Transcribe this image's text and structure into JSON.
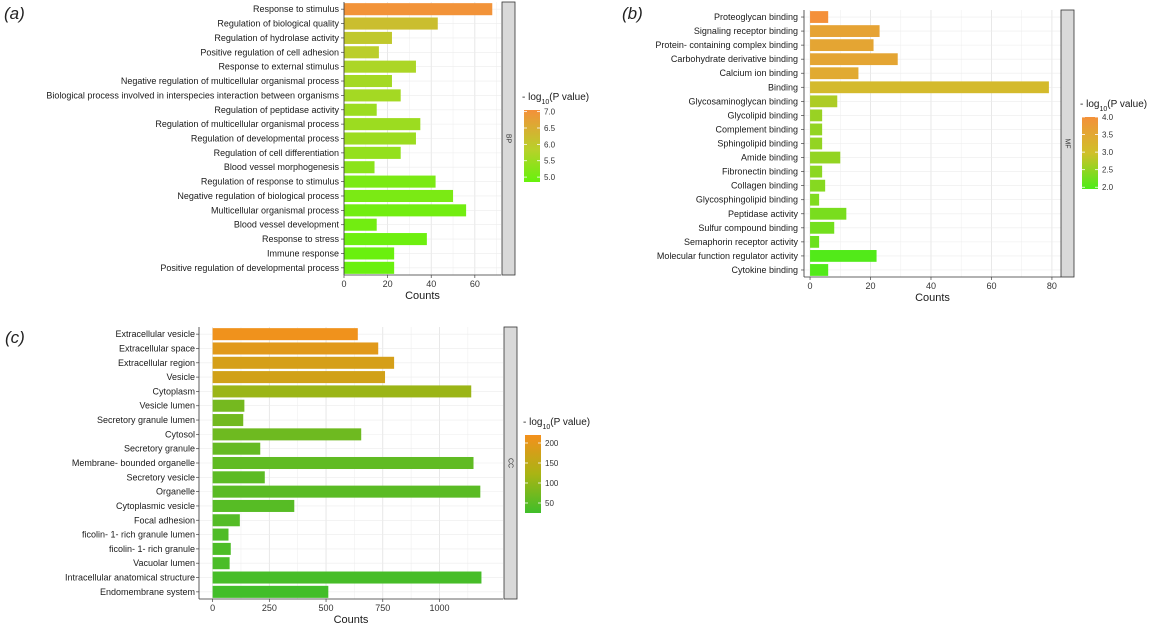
{
  "chart_data": [
    {
      "panel": "(a)",
      "type": "bar",
      "orientation": "horizontal",
      "facet_label": "BP",
      "xlabel": "Counts",
      "xlim": [
        0,
        72
      ],
      "xticks": [
        0,
        20,
        40,
        60
      ],
      "categories": [
        "Response to stimulus",
        "Regulation of biological quality",
        "Regulation of hydrolase activity",
        "Positive regulation of cell adhesion",
        "Response to external stimulus",
        "Negative regulation of multicellular organismal process",
        "Biological process involved in interspecies interaction between organisms",
        "Regulation of peptidase activity",
        "Regulation of multicellular organismal process",
        "Regulation of developmental process",
        "Regulation of cell differentiation",
        "Blood vessel morphogenesis",
        "Regulation of response to stimulus",
        "Negative regulation of biological process",
        "Multicellular organismal process",
        "Blood vessel development",
        "Response to stress",
        "Immune response",
        "Positive regulation of developmental process"
      ],
      "values": [
        68,
        43,
        22,
        16,
        33,
        22,
        26,
        15,
        35,
        33,
        26,
        14,
        42,
        50,
        56,
        15,
        38,
        23,
        23
      ],
      "color_values": [
        7.0,
        6.2,
        6.0,
        5.9,
        5.7,
        5.6,
        5.6,
        5.5,
        5.5,
        5.5,
        5.4,
        5.3,
        5.1,
        5.1,
        5.0,
        5.0,
        4.95,
        4.9,
        4.9
      ],
      "legend": {
        "title_prefix": "- log",
        "title_sub": "10",
        "title_suffix": "(P value)",
        "min": 4.85,
        "max": 7.05,
        "ticks": [
          "7.0",
          "6.5",
          "6.0",
          "5.5",
          "5.0"
        ],
        "tick_values": [
          7.0,
          6.5,
          6.0,
          5.5,
          5.0
        ]
      }
    },
    {
      "panel": "(b)",
      "type": "bar",
      "orientation": "horizontal",
      "facet_label": "MF",
      "xlabel": "Counts",
      "xlim": [
        -2,
        83
      ],
      "xticks": [
        0,
        20,
        40,
        60,
        80
      ],
      "categories": [
        "Proteoglycan binding",
        "Signaling receptor binding",
        "Protein- containing complex binding",
        "Carbohydrate derivative binding",
        "Calcium ion binding",
        "Binding",
        "Glycosaminoglycan binding",
        "Glycolipid binding",
        "Complement binding",
        "Sphingolipid binding",
        "Amide binding",
        "Fibronectin binding",
        "Collagen binding",
        "Glycosphingolipid binding",
        "Peptidase activity",
        "Sulfur compound binding",
        "Semaphorin receptor activity",
        "Molecular function regulator activity",
        "Cytokine binding"
      ],
      "values": [
        6,
        23,
        21,
        29,
        16,
        79,
        9,
        4,
        4,
        4,
        10,
        4,
        5,
        3,
        12,
        8,
        3,
        22,
        6
      ],
      "color_values": [
        4.0,
        3.6,
        3.55,
        3.55,
        3.45,
        3.1,
        2.7,
        2.55,
        2.5,
        2.5,
        2.5,
        2.45,
        2.4,
        2.35,
        2.3,
        2.25,
        2.2,
        2.0,
        2.0
      ],
      "legend": {
        "title_prefix": "- log",
        "title_sub": "10",
        "title_suffix": "(P value)",
        "min": 1.95,
        "max": 4.0,
        "ticks": [
          "4.0",
          "3.5",
          "3.0",
          "2.5",
          "2.0"
        ],
        "tick_values": [
          4.0,
          3.5,
          3.0,
          2.5,
          2.0
        ]
      }
    },
    {
      "panel": "(c)",
      "type": "bar",
      "orientation": "horizontal",
      "facet_label": "CC",
      "xlabel": "Counts",
      "xlim": [
        -60,
        1280
      ],
      "xticks": [
        0,
        250,
        500,
        750,
        1000
      ],
      "categories": [
        "Extracellular vesicle",
        "Extracellular space",
        "Extracellular region",
        "Vesicle",
        "Cytoplasm",
        "Vesicle lumen",
        "Secretory granule lumen",
        "Cytosol",
        "Secretory granule",
        "Membrane- bounded organelle",
        "Secretory vesicle",
        "Organelle",
        "Cytoplasmic vesicle",
        "Focal adhesion",
        "ficolin- 1- rich granule lumen",
        "ficolin- 1- rich granule",
        "Vacuolar lumen",
        "Intracellular anatomical structure",
        "Endomembrane system"
      ],
      "values": [
        640,
        730,
        800,
        760,
        1140,
        140,
        135,
        655,
        210,
        1150,
        230,
        1180,
        360,
        120,
        70,
        80,
        75,
        1185,
        510
      ],
      "color_values": [
        215,
        195,
        180,
        175,
        110,
        75,
        72,
        68,
        60,
        55,
        52,
        50,
        47,
        44,
        40,
        38,
        36,
        32,
        28
      ],
      "legend": {
        "title_prefix": "- log",
        "title_sub": "10",
        "title_suffix": "(P value)",
        "min": 25,
        "max": 220,
        "ticks": [
          "200",
          "150",
          "100",
          "50"
        ],
        "tick_values": [
          200,
          150,
          100,
          50
        ]
      }
    }
  ]
}
